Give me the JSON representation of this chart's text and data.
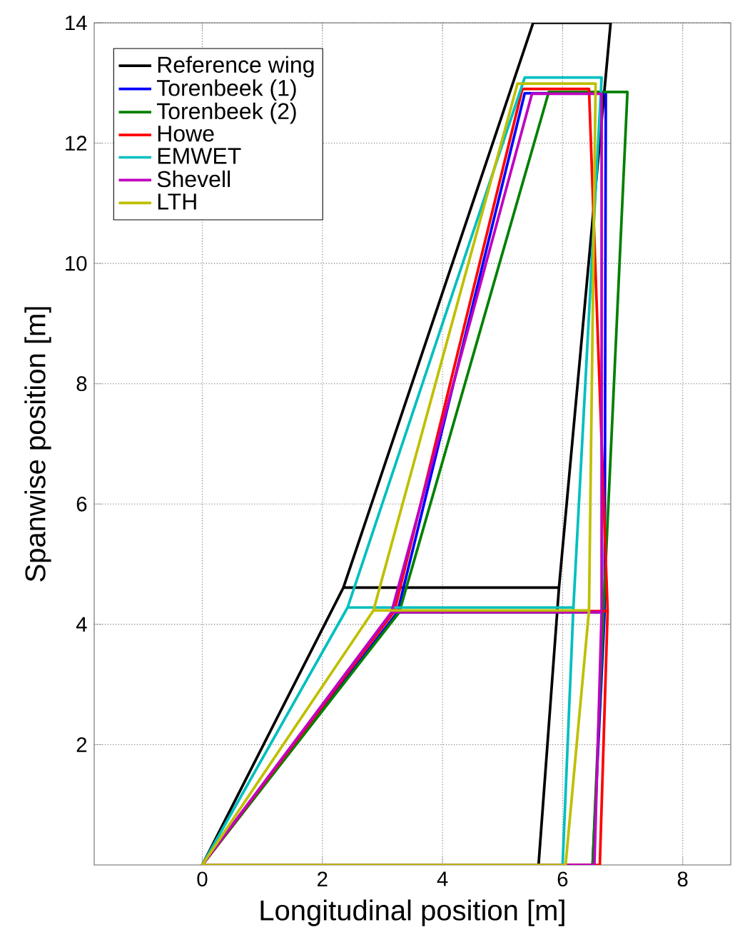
{
  "chart_data": {
    "type": "line",
    "xlabel": "Longitudinal position [m]",
    "ylabel": "Spanwise position [m]",
    "xlim": [
      -1.8,
      8.8
    ],
    "ylim": [
      0,
      14
    ],
    "xticks": [
      0,
      2,
      4,
      6,
      8
    ],
    "yticks": [
      2,
      4,
      6,
      8,
      10,
      12,
      14
    ],
    "grid": true,
    "legend": "top left",
    "series": [
      {
        "name": "Reference wing",
        "color": "#000000",
        "x": [
          2.35,
          5.94,
          5.6,
          0,
          2.35,
          5.51,
          6.8,
          5.94
        ],
        "values": [
          4.61,
          4.61,
          0,
          0,
          4.61,
          14,
          14,
          4.61
        ]
      },
      {
        "name": "Torenbeek (1)",
        "color": "#0000ff",
        "x": [
          3.25,
          6.7,
          6.5,
          0,
          3.25,
          5.37,
          6.72,
          6.7
        ],
        "values": [
          4.2,
          4.2,
          0,
          0,
          4.2,
          12.83,
          12.83,
          4.2
        ]
      },
      {
        "name": "Torenbeek (2)",
        "color": "#008000",
        "x": [
          3.28,
          6.68,
          6.5,
          0,
          3.28,
          5.77,
          7.08,
          6.68
        ],
        "values": [
          4.2,
          4.2,
          0,
          0,
          4.2,
          12.85,
          12.85,
          4.2
        ]
      },
      {
        "name": "Howe",
        "color": "#ff0000",
        "x": [
          3.2,
          6.75,
          6.62,
          0,
          3.2,
          5.33,
          6.44,
          6.75
        ],
        "values": [
          4.22,
          4.22,
          0,
          0,
          4.22,
          12.9,
          12.9,
          4.22
        ]
      },
      {
        "name": "EMWET",
        "color": "#00bfbf",
        "x": [
          2.42,
          6.18,
          6.0,
          0,
          2.42,
          5.37,
          6.65,
          6.18
        ],
        "values": [
          4.28,
          4.28,
          0,
          0,
          4.28,
          13.09,
          13.09,
          4.28
        ]
      },
      {
        "name": "Shevell",
        "color": "#bf00bf",
        "x": [
          3.15,
          6.65,
          6.53,
          0,
          3.15,
          5.49,
          6.65,
          6.65
        ],
        "values": [
          4.2,
          4.2,
          0,
          0,
          4.2,
          12.82,
          12.82,
          4.2
        ]
      },
      {
        "name": "LTH",
        "color": "#bfbf00",
        "x": [
          2.85,
          6.44,
          6.05,
          0,
          2.85,
          5.25,
          6.55,
          6.44
        ],
        "values": [
          4.23,
          4.23,
          0,
          0,
          4.23,
          12.99,
          12.99,
          4.23
        ]
      }
    ]
  }
}
